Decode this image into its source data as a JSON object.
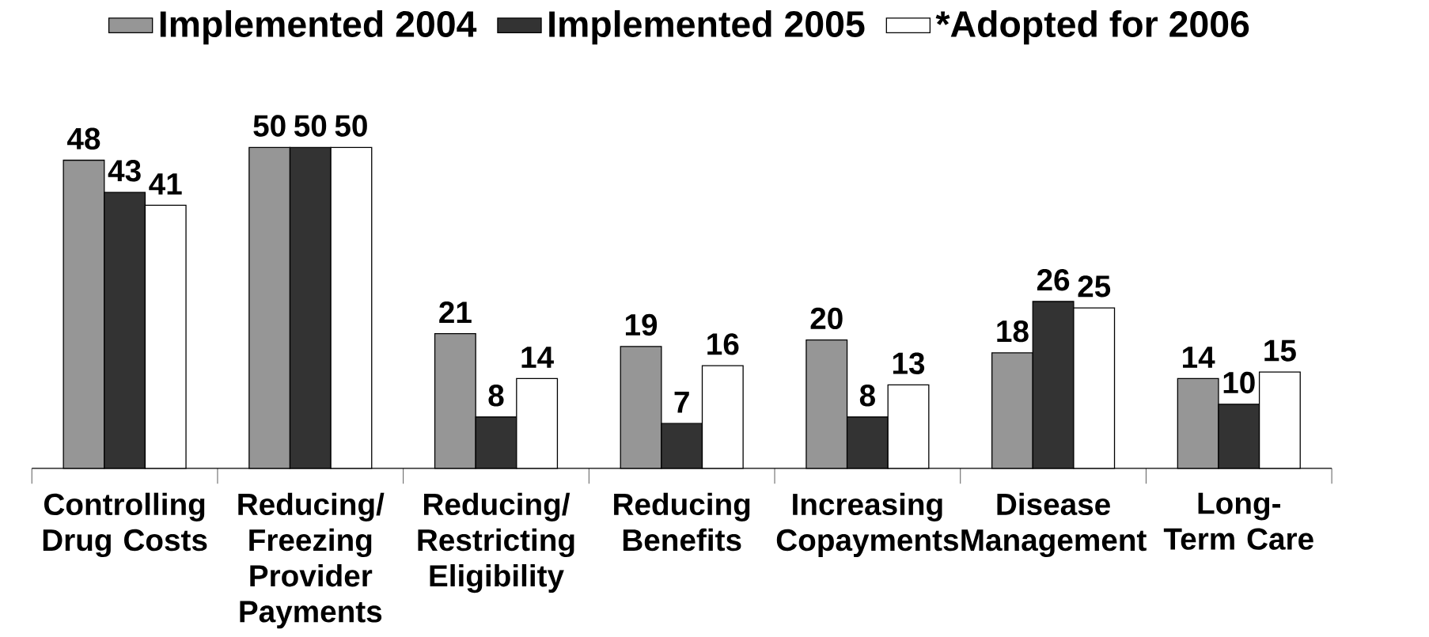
{
  "chart_data": {
    "type": "bar",
    "categories": [
      "Controlling Drug Costs",
      "Reducing/ Freezing Provider Payments",
      "Reducing/ Restricting Eligibility",
      "Reducing Benefits",
      "Increasing Copayments",
      "Disease Management",
      "Long-Term Care"
    ],
    "series": [
      {
        "name": "Implemented 2004",
        "color": "#969696",
        "values": [
          48,
          50,
          21,
          19,
          20,
          18,
          14
        ]
      },
      {
        "name": "Implemented 2005",
        "color": "#333333",
        "values": [
          43,
          50,
          8,
          7,
          8,
          26,
          10
        ]
      },
      {
        "name": "*Adopted for 2006",
        "color": "#ffffff",
        "values": [
          41,
          50,
          14,
          16,
          13,
          25,
          15
        ]
      }
    ],
    "data_labels": true,
    "legend": "top"
  }
}
